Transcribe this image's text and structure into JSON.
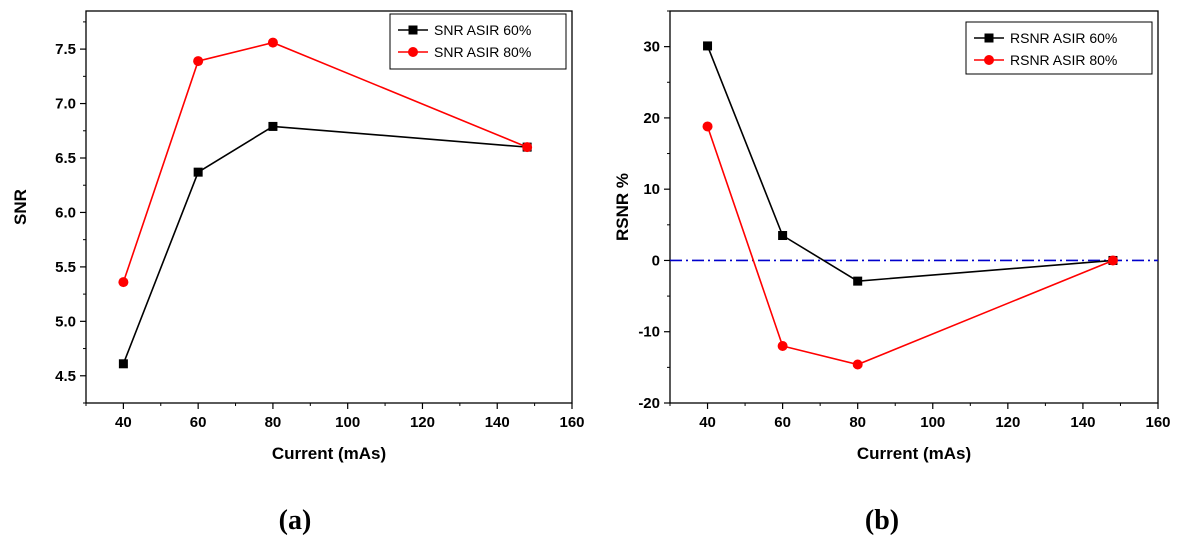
{
  "figure": {
    "panels": [
      {
        "caption": "(a)"
      },
      {
        "caption": "(b)"
      }
    ]
  },
  "chart_data": [
    {
      "type": "line",
      "xlabel": "Current (mAs)",
      "ylabel": "SNR",
      "xlim": [
        30,
        160
      ],
      "ylim": [
        4.25,
        7.85
      ],
      "xticks": [
        40,
        60,
        80,
        100,
        120,
        140,
        160
      ],
      "xtick_labels": [
        "40",
        "60",
        "80",
        "100",
        "120",
        "140",
        "160"
      ],
      "yticks": [
        4.5,
        5.0,
        5.5,
        6.0,
        6.5,
        7.0,
        7.5
      ],
      "ytick_labels": [
        "4.5",
        "5.0",
        "5.5",
        "6.0",
        "6.5",
        "7.0",
        "7.5"
      ],
      "legend_position": "top-right",
      "reference_line": null,
      "x": [
        40,
        60,
        80,
        148
      ],
      "series": [
        {
          "name": "SNR ASIR 60%",
          "color": "#000000",
          "marker": "square",
          "values": [
            4.61,
            6.37,
            6.79,
            6.6
          ]
        },
        {
          "name": "SNR ASIR 80%",
          "color": "#ff0000",
          "marker": "circle",
          "values": [
            5.36,
            7.39,
            7.56,
            6.6
          ]
        }
      ]
    },
    {
      "type": "line",
      "xlabel": "Current (mAs)",
      "ylabel": "RSNR %",
      "xlim": [
        30,
        160
      ],
      "ylim": [
        -20,
        35
      ],
      "xticks": [
        40,
        60,
        80,
        100,
        120,
        140,
        160
      ],
      "xtick_labels": [
        "40",
        "60",
        "80",
        "100",
        "120",
        "140",
        "160"
      ],
      "yticks": [
        -20,
        -10,
        0,
        10,
        20,
        30
      ],
      "ytick_labels": [
        "-20",
        "-10",
        "0",
        "10",
        "20",
        "30"
      ],
      "legend_position": "top-right",
      "reference_line": {
        "y": 0,
        "color": "#0000cc",
        "style": "dash-dot"
      },
      "x": [
        40,
        60,
        80,
        148
      ],
      "series": [
        {
          "name": "RSNR ASIR 60%",
          "color": "#000000",
          "marker": "square",
          "values": [
            30.1,
            3.5,
            -2.9,
            0.0
          ]
        },
        {
          "name": "RSNR ASIR 80%",
          "color": "#ff0000",
          "marker": "circle",
          "values": [
            18.8,
            -12.0,
            -14.6,
            0.0
          ]
        }
      ]
    }
  ]
}
